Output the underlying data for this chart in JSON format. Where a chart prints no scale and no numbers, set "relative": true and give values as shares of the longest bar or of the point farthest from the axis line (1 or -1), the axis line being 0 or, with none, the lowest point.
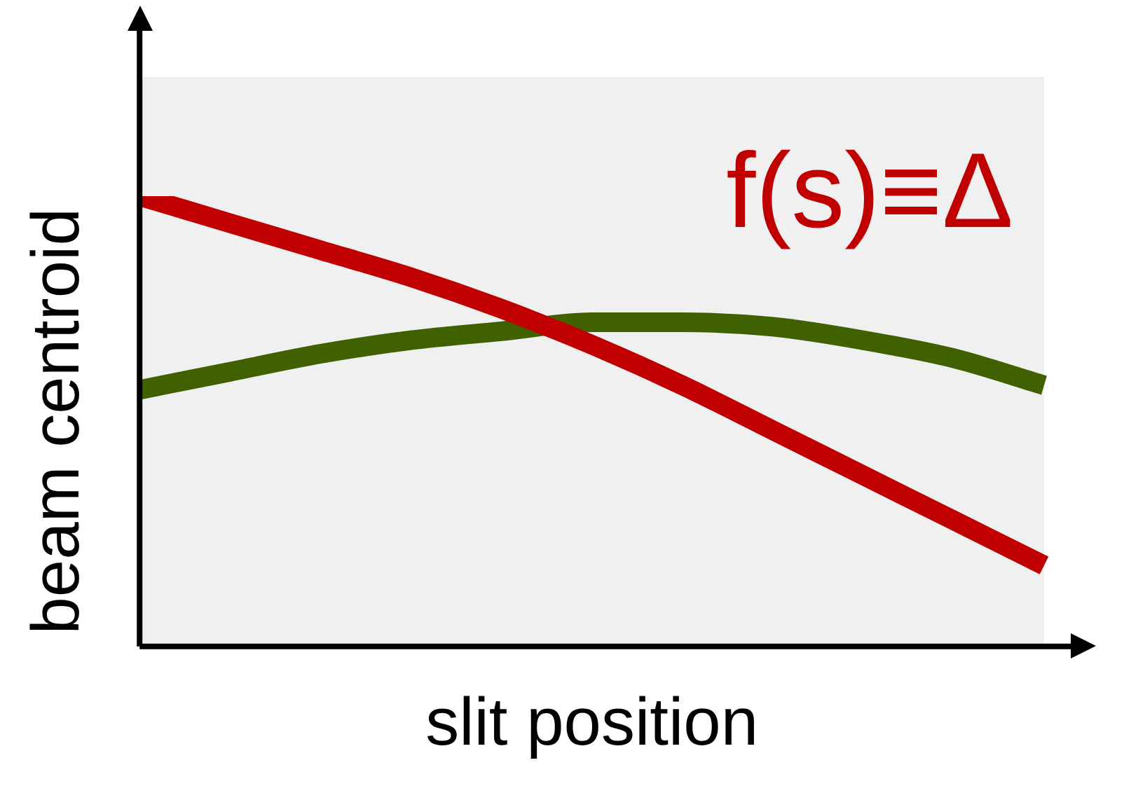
{
  "chart_data": {
    "type": "line",
    "relative": true,
    "xlabel": "slit position",
    "ylabel": "beam centroid",
    "annotations": [
      "f(s)≡Δ"
    ],
    "categories": [
      null,
      null,
      null,
      null,
      null,
      null,
      null,
      null,
      null,
      null,
      null
    ],
    "marker": "none",
    "line_style": "solid",
    "grid": false,
    "legend": false,
    "series": [
      {
        "color": "#c00000",
        "values": [
          1,
          0.94,
          0.88,
          0.82,
          0.75,
          0.67,
          0.58,
          0.48,
          0.38,
          0.28,
          0.18
        ]
      },
      {
        "color": "#3f6100",
        "values": [
          0.57,
          0.61,
          0.65,
          0.68,
          0.7,
          0.72,
          0.72,
          0.71,
          0.68,
          0.64,
          0.58
        ]
      }
    ]
  }
}
